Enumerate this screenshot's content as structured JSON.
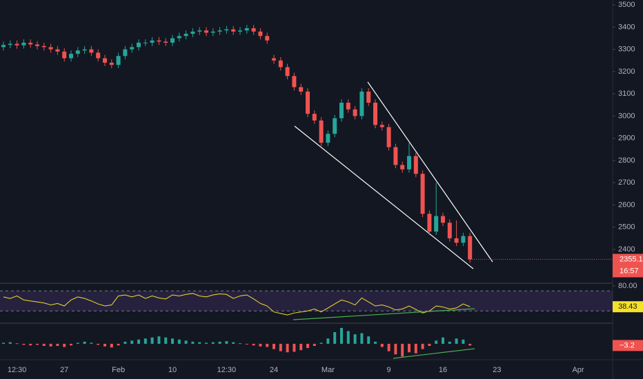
{
  "chart_data": [
    {
      "type": "candlestick",
      "up_color": "#26a69a",
      "down_color": "#ef5350",
      "grid": false,
      "categories": [
        null,
        null,
        "12:30",
        null,
        null,
        null,
        null,
        null,
        null,
        "27",
        null,
        null,
        null,
        null,
        null,
        null,
        null,
        "Feb",
        null,
        null,
        null,
        null,
        null,
        null,
        null,
        "10",
        null,
        null,
        null,
        null,
        null,
        null,
        null,
        "12:30",
        null,
        null,
        null,
        null,
        null,
        null,
        "24",
        null,
        null,
        null,
        null,
        null,
        null,
        null,
        "Mar",
        null,
        null,
        null,
        null,
        null,
        null,
        null,
        null,
        "9",
        null,
        null,
        null,
        null,
        null,
        null,
        null,
        "16",
        null,
        null,
        null,
        null,
        null,
        null,
        null,
        "23",
        null,
        null,
        null,
        null,
        null,
        null,
        null,
        null,
        null,
        null,
        null,
        "Apr",
        null,
        null
      ],
      "open": [
        3310,
        3320,
        3325,
        3318,
        3330,
        3322,
        3315,
        3310,
        3300,
        3290,
        3260,
        3280,
        3295,
        3300,
        3285,
        3260,
        3240,
        3230,
        3270,
        3300,
        3310,
        3330,
        3330,
        3340,
        3335,
        3330,
        3350,
        3360,
        3370,
        3380,
        3385,
        3375,
        3380,
        3385,
        3390,
        3380,
        3385,
        3395,
        3380,
        3360,
        3260,
        3250,
        3220,
        3180,
        3130,
        3110,
        3010,
        2980,
        2880,
        2920,
        2990,
        3060,
        3030,
        3000,
        3110,
        3060,
        2960,
        2950,
        2860,
        2780,
        2760,
        2820,
        2740,
        2560,
        2480,
        2550,
        2520,
        2450,
        2430,
        2460,
        null,
        null,
        null,
        null,
        null,
        null,
        null,
        null,
        null,
        null,
        null,
        null,
        null,
        null,
        null,
        null,
        null,
        null
      ],
      "high": [
        3335,
        3340,
        3340,
        3345,
        3345,
        3337,
        3330,
        3325,
        3315,
        3305,
        3295,
        3310,
        3315,
        3315,
        3300,
        3275,
        3255,
        3285,
        3315,
        3325,
        3345,
        3345,
        3355,
        3355,
        3350,
        3365,
        3375,
        3385,
        3395,
        3400,
        3400,
        3395,
        3400,
        3405,
        3405,
        3400,
        3410,
        3410,
        3395,
        3375,
        3275,
        3265,
        3235,
        3195,
        3145,
        3125,
        3025,
        2995,
        2935,
        3005,
        3075,
        3075,
        3045,
        3125,
        3125,
        3075,
        2975,
        2965,
        2875,
        2795,
        2880,
        2835,
        2755,
        2575,
        2700,
        2565,
        2535,
        2530,
        2475,
        2475,
        null,
        null,
        null,
        null,
        null,
        null,
        null,
        null,
        null,
        null,
        null,
        null,
        null,
        null,
        null,
        null,
        null,
        null
      ],
      "low": [
        3295,
        3305,
        3303,
        3303,
        3307,
        3300,
        3295,
        3285,
        3275,
        3245,
        3245,
        3265,
        3280,
        3270,
        3245,
        3225,
        3215,
        3215,
        3255,
        3285,
        3295,
        3315,
        3315,
        3320,
        3315,
        3315,
        3335,
        3345,
        3355,
        3365,
        3360,
        3360,
        3365,
        3370,
        3365,
        3365,
        3370,
        3365,
        3345,
        3325,
        3235,
        3205,
        3165,
        3115,
        3095,
        2995,
        2965,
        2865,
        2865,
        2905,
        2975,
        3015,
        2985,
        2985,
        3045,
        2945,
        2935,
        2845,
        2765,
        2745,
        2745,
        2725,
        2545,
        2465,
        2465,
        2505,
        2435,
        2415,
        2415,
        2340,
        null,
        null,
        null,
        null,
        null,
        null,
        null,
        null,
        null,
        null,
        null,
        null,
        null,
        null,
        null,
        null,
        null,
        null
      ],
      "close": [
        3320,
        3325,
        3318,
        3330,
        3322,
        3315,
        3310,
        3300,
        3290,
        3260,
        3280,
        3295,
        3300,
        3285,
        3260,
        3240,
        3230,
        3270,
        3300,
        3310,
        3330,
        3330,
        3340,
        3335,
        3330,
        3350,
        3360,
        3370,
        3380,
        3385,
        3375,
        3380,
        3385,
        3390,
        3380,
        3385,
        3395,
        3380,
        3360,
        3340,
        3250,
        3220,
        3180,
        3130,
        3110,
        3010,
        2980,
        2880,
        2920,
        2990,
        3060,
        3030,
        3000,
        3110,
        3060,
        2960,
        2950,
        2860,
        2780,
        2760,
        2820,
        2740,
        2560,
        2480,
        2550,
        2520,
        2450,
        2430,
        2460,
        2355.1,
        null,
        null,
        null,
        null,
        null,
        null,
        null,
        null,
        null,
        null,
        null,
        null,
        null,
        null,
        null,
        null,
        null,
        null
      ],
      "ylim": [
        2251,
        3522
      ],
      "yticks": [
        2400,
        2500,
        2600,
        2700,
        2800,
        2900,
        3000,
        3100,
        3200,
        3300,
        3400,
        3500
      ],
      "countdown": "16:57"
    },
    {
      "type": "line",
      "color": "#f5e02a",
      "band": [
        30,
        70
      ],
      "band_color": "#7e57c2",
      "values": [
        58,
        55,
        60,
        52,
        50,
        48,
        46,
        42,
        45,
        40,
        52,
        58,
        55,
        50,
        44,
        40,
        42,
        60,
        62,
        58,
        62,
        55,
        60,
        56,
        54,
        62,
        60,
        63,
        65,
        60,
        58,
        62,
        64,
        63,
        55,
        60,
        62,
        54,
        45,
        40,
        28,
        25,
        22,
        26,
        28,
        30,
        34,
        28,
        36,
        44,
        52,
        48,
        42,
        56,
        48,
        40,
        42,
        38,
        32,
        34,
        40,
        33,
        26,
        30,
        40,
        38,
        34,
        36,
        44,
        38.43
      ],
      "ylim": [
        7,
        84
      ],
      "yticks": [
        {
          "value": 80,
          "label": "80.00"
        }
      ]
    },
    {
      "type": "bar",
      "up_color": "#26a69a",
      "down_color": "#ef5350",
      "values": [
        2,
        3,
        1,
        -2,
        -3,
        -2,
        -4,
        -5,
        -4,
        -6,
        -3,
        2,
        4,
        2,
        -2,
        -5,
        -7,
        -3,
        4,
        6,
        8,
        10,
        12,
        14,
        12,
        10,
        8,
        6,
        4,
        3,
        2,
        3,
        4,
        5,
        3,
        1,
        -1,
        -3,
        -5,
        -6,
        -10,
        -14,
        -16,
        -15,
        -12,
        -8,
        -4,
        2,
        10,
        22,
        30,
        24,
        18,
        20,
        14,
        4,
        -6,
        -14,
        -20,
        -24,
        -16,
        -18,
        -10,
        -4,
        6,
        12,
        4,
        10,
        8,
        -3.2
      ],
      "value_labels": [
        null,
        null,
        null,
        null,
        null,
        null,
        null,
        null,
        null,
        null,
        null,
        null,
        null,
        null,
        null,
        null,
        null,
        null,
        null,
        null,
        null,
        null,
        null,
        null,
        null,
        null,
        null,
        null,
        null,
        null,
        null,
        null,
        null,
        null,
        null,
        null,
        null,
        null,
        null,
        null,
        null,
        null,
        null,
        null,
        null,
        null,
        null,
        null,
        null,
        null,
        null,
        null,
        null,
        null,
        null,
        null,
        null,
        null,
        null,
        null,
        null,
        null,
        null,
        null,
        null,
        null,
        null,
        null,
        null,
        "−3.2"
      ],
      "ylim": [
        -30,
        35
      ]
    }
  ]
}
